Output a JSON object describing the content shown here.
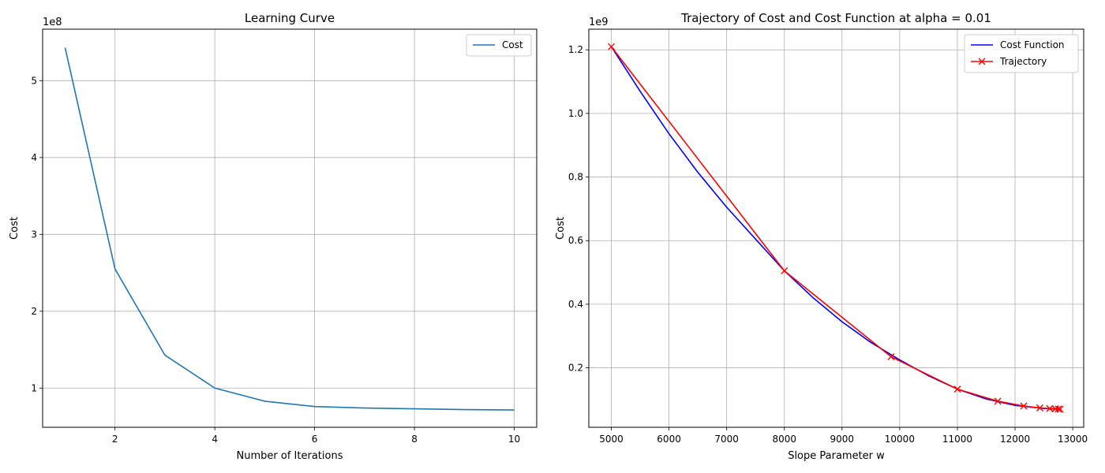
{
  "chart_data": [
    {
      "type": "line",
      "title": "Learning Curve",
      "xlabel": "Number of Iterations",
      "ylabel": "Cost",
      "y_offset_label": "1e8",
      "xlim": [
        0.55,
        10.45
      ],
      "ylim": [
        0.49,
        5.67
      ],
      "x_ticks": [
        2,
        4,
        6,
        8,
        10
      ],
      "x_tick_labels": [
        "2",
        "4",
        "6",
        "8",
        "10"
      ],
      "y_ticks": [
        1,
        2,
        3,
        4,
        5
      ],
      "y_tick_labels": [
        "1",
        "2",
        "3",
        "4",
        "5"
      ],
      "grid": true,
      "legend_position": "top-right",
      "series": [
        {
          "name": "Cost",
          "color": "#1f77b4",
          "marker": "none",
          "x": [
            1,
            2,
            3,
            4,
            5,
            6,
            7,
            8,
            9,
            10
          ],
          "y": [
            5.43,
            2.55,
            1.43,
            1.0,
            0.83,
            0.76,
            0.74,
            0.73,
            0.72,
            0.715
          ]
        }
      ]
    },
    {
      "type": "line",
      "title": "Trajectory of Cost and Cost Function at alpha = 0.01",
      "xlabel": "Slope Parameter w",
      "ylabel": "Cost",
      "y_offset_label": "1e9",
      "xlim": [
        4610,
        13190
      ],
      "ylim": [
        0.013,
        1.265
      ],
      "x_ticks": [
        5000,
        6000,
        7000,
        8000,
        9000,
        10000,
        11000,
        12000,
        13000
      ],
      "x_tick_labels": [
        "5000",
        "6000",
        "7000",
        "8000",
        "9000",
        "10000",
        "11000",
        "12000",
        "13000"
      ],
      "y_ticks": [
        0.2,
        0.4,
        0.6,
        0.8,
        1.0,
        1.2
      ],
      "y_tick_labels": [
        "0.2",
        "0.4",
        "0.6",
        "0.8",
        "1.0",
        "1.2"
      ],
      "grid": true,
      "legend_position": "top-right",
      "series": [
        {
          "name": "Cost Function",
          "color": "#0000ff",
          "marker": "none",
          "x": [
            5000,
            5500,
            6000,
            6500,
            7000,
            7500,
            8000,
            8500,
            9000,
            9500,
            10000,
            10500,
            11000,
            11500,
            12000,
            12500,
            12800
          ],
          "y": [
            1.21,
            1.07,
            0.936,
            0.815,
            0.705,
            0.605,
            0.505,
            0.42,
            0.345,
            0.28,
            0.225,
            0.175,
            0.133,
            0.102,
            0.082,
            0.072,
            0.07
          ]
        },
        {
          "name": "Trajectory",
          "color": "#ff0000",
          "marker": "x",
          "x": [
            5000,
            8000,
            9850,
            11000,
            11700,
            12150,
            12430,
            12600,
            12700,
            12750,
            12780
          ],
          "y": [
            1.21,
            0.505,
            0.235,
            0.133,
            0.095,
            0.08,
            0.074,
            0.072,
            0.071,
            0.0705,
            0.07
          ]
        }
      ]
    }
  ]
}
